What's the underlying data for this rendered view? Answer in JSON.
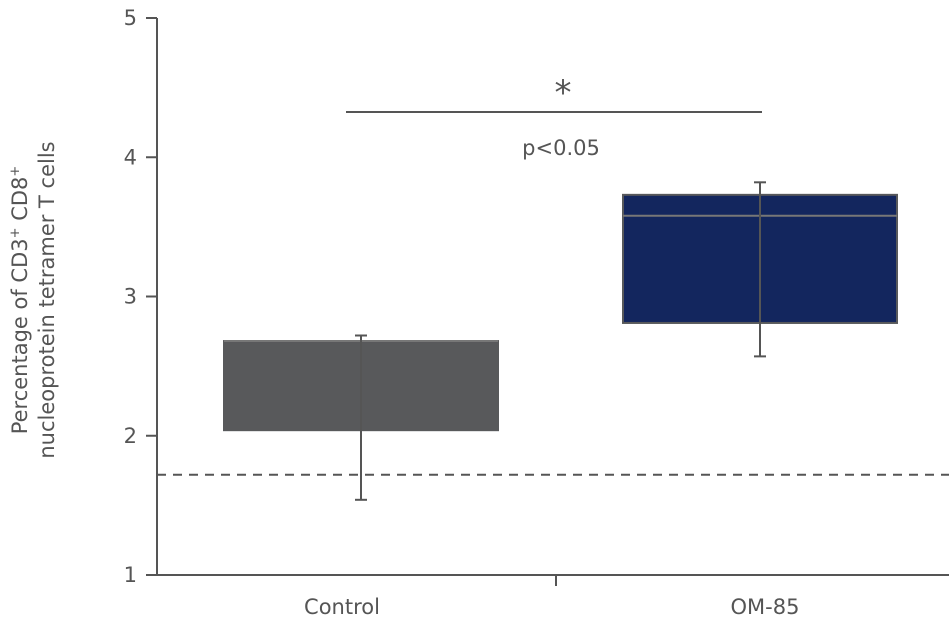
{
  "chart_data": {
    "type": "box",
    "ylabel_line1_pre": "Percentage of CD3",
    "ylabel_line1_sup1": "+",
    "ylabel_line1_mid": " CD8",
    "ylabel_line1_sup2": "+",
    "ylabel_line2": "nucleoprotein tetramer T cells",
    "ylim": [
      1,
      5
    ],
    "yticks": [
      "1",
      "2",
      "3",
      "4",
      "5"
    ],
    "categories": [
      "Control",
      "OM-85"
    ],
    "boxes": [
      {
        "category": "Control",
        "q1": 2.04,
        "median": 2.68,
        "q3": 2.68,
        "whisker_low": 1.54,
        "whisker_high": 2.72,
        "color": "#58595b"
      },
      {
        "category": "OM-85",
        "q1": 2.81,
        "median": 3.58,
        "q3": 3.73,
        "whisker_low": 2.57,
        "whisker_high": 3.82,
        "color": "#13265e"
      }
    ],
    "reference_line": 1.72,
    "significance": {
      "symbol": "*",
      "label": "p<0.05"
    },
    "grid": false
  }
}
